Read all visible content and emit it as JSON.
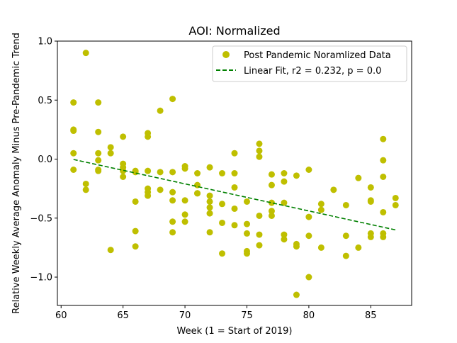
{
  "chart_data": {
    "type": "scatter",
    "title": "AOI: Normalized",
    "xlabel": "Week (1 = Start of 2019)",
    "ylabel": "Relative Weekly Average Anomaly Minus Pre-Pandemic Trend",
    "xlim": [
      59.7,
      88.3
    ],
    "ylim": [
      -1.24,
      1.0
    ],
    "xticks": [
      60,
      65,
      70,
      75,
      80,
      85
    ],
    "xtick_labels": [
      "60",
      "65",
      "70",
      "75",
      "80",
      "85"
    ],
    "yticks": [
      1.0,
      0.5,
      0.0,
      -0.5,
      -1.0
    ],
    "ytick_labels": [
      "1.0",
      "0.5",
      "0.0",
      "−0.5",
      "−1.0"
    ],
    "grid": false,
    "legend_position": "top-right",
    "series": [
      {
        "name": "Post Pandemic Noramlized Data",
        "kind": "points",
        "color": "#bfbf00",
        "points": [
          [
            61,
            0.48
          ],
          [
            61,
            0.25
          ],
          [
            61,
            0.24
          ],
          [
            61,
            0.05
          ],
          [
            61,
            -0.09
          ],
          [
            62,
            0.9
          ],
          [
            62,
            -0.21
          ],
          [
            62,
            -0.26
          ],
          [
            63,
            0.48
          ],
          [
            63,
            0.23
          ],
          [
            63,
            0.05
          ],
          [
            63,
            -0.01
          ],
          [
            63,
            -0.09
          ],
          [
            63,
            -0.1
          ],
          [
            64,
            0.1
          ],
          [
            64,
            0.05
          ],
          [
            64,
            -0.77
          ],
          [
            65,
            0.19
          ],
          [
            65,
            -0.04
          ],
          [
            65,
            -0.07
          ],
          [
            65,
            -0.1
          ],
          [
            65,
            -0.15
          ],
          [
            66,
            -0.1
          ],
          [
            66,
            -0.11
          ],
          [
            66,
            -0.36
          ],
          [
            66,
            -0.61
          ],
          [
            66,
            -0.74
          ],
          [
            67,
            0.22
          ],
          [
            67,
            0.19
          ],
          [
            67,
            -0.1
          ],
          [
            67,
            -0.25
          ],
          [
            67,
            -0.28
          ],
          [
            67,
            -0.31
          ],
          [
            68,
            0.41
          ],
          [
            68,
            -0.11
          ],
          [
            68,
            -0.26
          ],
          [
            69,
            0.51
          ],
          [
            69,
            -0.11
          ],
          [
            69,
            -0.28
          ],
          [
            69,
            -0.35
          ],
          [
            69,
            -0.53
          ],
          [
            69,
            -0.62
          ],
          [
            70,
            -0.06
          ],
          [
            70,
            -0.08
          ],
          [
            70,
            -0.35
          ],
          [
            70,
            -0.47
          ],
          [
            70,
            -0.53
          ],
          [
            71,
            -0.12
          ],
          [
            71,
            -0.22
          ],
          [
            71,
            -0.29
          ],
          [
            71,
            -0.29
          ],
          [
            72,
            -0.07
          ],
          [
            72,
            -0.31
          ],
          [
            72,
            -0.36
          ],
          [
            72,
            -0.41
          ],
          [
            72,
            -0.46
          ],
          [
            72,
            -0.62
          ],
          [
            73,
            -0.12
          ],
          [
            73,
            -0.38
          ],
          [
            73,
            -0.54
          ],
          [
            73,
            -0.8
          ],
          [
            74,
            0.05
          ],
          [
            74,
            -0.12
          ],
          [
            74,
            -0.24
          ],
          [
            74,
            -0.42
          ],
          [
            74,
            -0.56
          ],
          [
            75,
            -0.36
          ],
          [
            75,
            -0.55
          ],
          [
            75,
            -0.63
          ],
          [
            75,
            -0.78
          ],
          [
            75,
            -0.8
          ],
          [
            76,
            0.13
          ],
          [
            76,
            0.07
          ],
          [
            76,
            0.02
          ],
          [
            76,
            -0.48
          ],
          [
            76,
            -0.64
          ],
          [
            76,
            -0.73
          ],
          [
            77,
            -0.13
          ],
          [
            77,
            -0.22
          ],
          [
            77,
            -0.37
          ],
          [
            77,
            -0.44
          ],
          [
            77,
            -0.48
          ],
          [
            78,
            -0.12
          ],
          [
            78,
            -0.19
          ],
          [
            78,
            -0.37
          ],
          [
            78,
            -0.64
          ],
          [
            78,
            -0.68
          ],
          [
            79,
            -0.14
          ],
          [
            79,
            -0.72
          ],
          [
            79,
            -0.74
          ],
          [
            79,
            -1.15
          ],
          [
            80,
            -0.09
          ],
          [
            80,
            -0.49
          ],
          [
            80,
            -0.65
          ],
          [
            80,
            -1.0
          ],
          [
            81,
            -0.38
          ],
          [
            81,
            -0.43
          ],
          [
            81,
            -0.75
          ],
          [
            82,
            -0.26
          ],
          [
            83,
            -0.39
          ],
          [
            83,
            -0.65
          ],
          [
            83,
            -0.82
          ],
          [
            84,
            -0.16
          ],
          [
            84,
            -0.75
          ],
          [
            85,
            -0.24
          ],
          [
            85,
            -0.35
          ],
          [
            85,
            -0.36
          ],
          [
            85,
            -0.63
          ],
          [
            85,
            -0.66
          ],
          [
            86,
            0.17
          ],
          [
            86,
            -0.01
          ],
          [
            86,
            -0.15
          ],
          [
            86,
            -0.45
          ],
          [
            86,
            -0.63
          ],
          [
            86,
            -0.66
          ],
          [
            87,
            -0.33
          ],
          [
            87,
            -0.39
          ]
        ]
      },
      {
        "name": "Linear Fit, r2 = 0.232, p = 0.0",
        "kind": "line",
        "style": "dashed",
        "color": "#008000",
        "points": [
          [
            61,
            -0.003
          ],
          [
            87,
            -0.6
          ]
        ]
      }
    ]
  }
}
